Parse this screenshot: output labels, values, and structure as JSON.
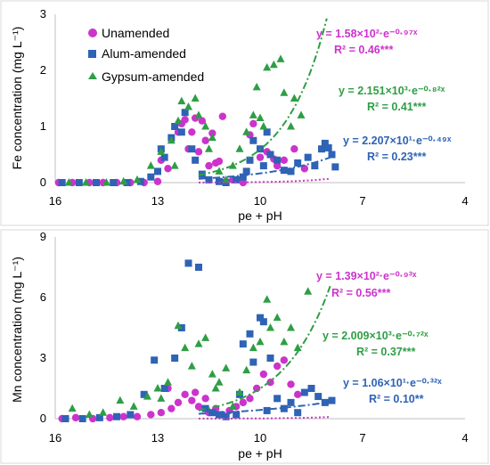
{
  "colors": {
    "Unamended": "#cc33cc",
    "Alum-amended": "#2e63b5",
    "Gypsum-amended": "#2e9e45"
  },
  "chart_data": [
    {
      "type": "scatter",
      "title": "",
      "xlabel": "pe + pH",
      "ylabel": "Fe concentration (mg L⁻¹)",
      "xlim": [
        16,
        4
      ],
      "ylim": [
        0,
        3
      ],
      "x_reversed": true,
      "x_ticks": [
        "16",
        "13",
        "10",
        "7",
        "4"
      ],
      "y_ticks": [
        "0",
        "1",
        "2",
        "3"
      ],
      "legend_position": "top-left",
      "series": [
        {
          "name": "Unamended",
          "marker": "circle",
          "points": [
            [
              15.9,
              0
            ],
            [
              15.5,
              0
            ],
            [
              15.0,
              0
            ],
            [
              14.6,
              0
            ],
            [
              14.2,
              0
            ],
            [
              13.8,
              0
            ],
            [
              13.4,
              0
            ],
            [
              13.0,
              0.02
            ],
            [
              12.7,
              0.25
            ],
            [
              12.4,
              0.9
            ],
            [
              12.3,
              1.05
            ],
            [
              12.2,
              1.12
            ],
            [
              12.0,
              0.9
            ],
            [
              11.9,
              1.15
            ],
            [
              11.8,
              0.55
            ],
            [
              11.7,
              1.1
            ],
            [
              11.6,
              0.75
            ],
            [
              11.5,
              0.3
            ],
            [
              11.4,
              0.88
            ],
            [
              11.3,
              0.35
            ],
            [
              11.2,
              0.38
            ],
            [
              11.0,
              0.02
            ],
            [
              10.8,
              0.05
            ],
            [
              10.5,
              0.0
            ],
            [
              10.3,
              0.85
            ],
            [
              10.2,
              1.05
            ],
            [
              10.0,
              0.45
            ],
            [
              9.8,
              0.55
            ],
            [
              9.6,
              0.42
            ],
            [
              9.5,
              0.3
            ],
            [
              9.3,
              0.4
            ],
            [
              9.0,
              0.6
            ],
            [
              8.7,
              0.25
            ],
            [
              12.9,
              0.4
            ],
            [
              12.1,
              0.6
            ],
            [
              11.1,
              1.18
            ]
          ]
        },
        {
          "name": "Alum-amended",
          "marker": "square",
          "points": [
            [
              15.8,
              0
            ],
            [
              15.3,
              0
            ],
            [
              14.8,
              0
            ],
            [
              14.3,
              0
            ],
            [
              13.9,
              0
            ],
            [
              13.5,
              0.02
            ],
            [
              13.2,
              0.1
            ],
            [
              13.0,
              0.2
            ],
            [
              12.8,
              0.45
            ],
            [
              12.6,
              0.8
            ],
            [
              12.5,
              1.0
            ],
            [
              12.3,
              0.9
            ],
            [
              12.2,
              1.25
            ],
            [
              12.0,
              0.6
            ],
            [
              11.9,
              0.4
            ],
            [
              11.7,
              0.15
            ],
            [
              11.5,
              0.05
            ],
            [
              11.2,
              0.02
            ],
            [
              11.0,
              0
            ],
            [
              10.7,
              0.05
            ],
            [
              10.5,
              0.1
            ],
            [
              10.3,
              0.4
            ],
            [
              10.2,
              0.75
            ],
            [
              10.0,
              0.6
            ],
            [
              9.9,
              0.3
            ],
            [
              9.7,
              0.5
            ],
            [
              9.5,
              0.4
            ],
            [
              9.3,
              0.22
            ],
            [
              9.1,
              0.2
            ],
            [
              8.9,
              0.35
            ],
            [
              8.6,
              0.45
            ],
            [
              8.4,
              0.3
            ],
            [
              8.2,
              0.6
            ],
            [
              8.1,
              0.7
            ],
            [
              8.0,
              0.62
            ],
            [
              7.9,
              0.5
            ],
            [
              7.8,
              0.28
            ],
            [
              9.8,
              0.9
            ],
            [
              12.9,
              0.6
            ],
            [
              10.4,
              0.2
            ]
          ]
        },
        {
          "name": "Gypsum-amended",
          "marker": "triangle",
          "points": [
            [
              15.6,
              0
            ],
            [
              15.1,
              0
            ],
            [
              14.5,
              0
            ],
            [
              14.0,
              0.02
            ],
            [
              13.6,
              0.05
            ],
            [
              13.2,
              0.3
            ],
            [
              12.9,
              0.55
            ],
            [
              12.6,
              0.75
            ],
            [
              12.4,
              1.1
            ],
            [
              12.3,
              1.45
            ],
            [
              12.1,
              1.35
            ],
            [
              11.9,
              1.5
            ],
            [
              11.8,
              1.2
            ],
            [
              11.6,
              1.0
            ],
            [
              11.4,
              0.8
            ],
            [
              11.2,
              0.2
            ],
            [
              11.0,
              0.05
            ],
            [
              10.8,
              0.3
            ],
            [
              10.6,
              0.6
            ],
            [
              10.4,
              0.9
            ],
            [
              10.2,
              1.2
            ],
            [
              10.1,
              1.7
            ],
            [
              10.0,
              1.15
            ],
            [
              9.9,
              1.0
            ],
            [
              9.8,
              2.05
            ],
            [
              9.6,
              2.1
            ],
            [
              9.4,
              2.2
            ],
            [
              9.3,
              1.6
            ],
            [
              9.1,
              1.0
            ],
            [
              9.0,
              1.5
            ],
            [
              8.8,
              1.2
            ],
            [
              12.5,
              0.3
            ],
            [
              11.5,
              0.6
            ]
          ]
        }
      ],
      "trendlines": [
        {
          "series": "Unamended",
          "a": 158,
          "b": -0.97,
          "equation": "y = 1.58×10²·e⁻⁰·⁹⁷ˣ",
          "r2_text": "R² = 0.46***",
          "style": "dotted"
        },
        {
          "series": "Gypsum-amended",
          "a": 2151,
          "b": -0.82,
          "equation": "y = 2.151×10³·e⁻⁰·⁸²ˣ",
          "r2_text": "R² = 0.41***",
          "style": "dashdot"
        },
        {
          "series": "Alum-amended",
          "a": 22.07,
          "b": -0.49,
          "equation": "y = 2.207×10¹·e⁻⁰·⁴⁹ˣ",
          "r2_text": "R² = 0.23***",
          "style": "dashdot"
        }
      ]
    },
    {
      "type": "scatter",
      "title": "",
      "xlabel": "pe + pH",
      "ylabel": "Mn concentration (mg L⁻¹)",
      "xlim": [
        16,
        4
      ],
      "ylim": [
        0,
        9
      ],
      "x_reversed": true,
      "x_ticks": [
        "16",
        "13",
        "10",
        "7",
        "4"
      ],
      "y_ticks": [
        "0",
        "3",
        "6",
        "9"
      ],
      "series": [
        {
          "name": "Unamended",
          "marker": "circle",
          "points": [
            [
              15.8,
              0
            ],
            [
              15.4,
              0.05
            ],
            [
              14.9,
              0
            ],
            [
              14.4,
              0.05
            ],
            [
              14.0,
              0.1
            ],
            [
              13.6,
              0.1
            ],
            [
              13.2,
              0.2
            ],
            [
              12.9,
              0.3
            ],
            [
              12.6,
              0.5
            ],
            [
              12.4,
              0.8
            ],
            [
              12.2,
              1.2
            ],
            [
              12.0,
              0.9
            ],
            [
              11.8,
              0.6
            ],
            [
              11.6,
              1.0
            ],
            [
              11.5,
              0.3
            ],
            [
              11.3,
              0.5
            ],
            [
              11.1,
              0.2
            ],
            [
              10.9,
              0.4
            ],
            [
              10.7,
              0.6
            ],
            [
              10.5,
              0.8
            ],
            [
              10.3,
              1.0
            ],
            [
              10.1,
              1.5
            ],
            [
              9.9,
              2.2
            ],
            [
              9.7,
              1.8
            ],
            [
              9.5,
              2.6
            ],
            [
              9.3,
              2.9
            ],
            [
              9.1,
              1.7
            ],
            [
              8.9,
              1.2
            ],
            [
              12.7,
              1.5
            ],
            [
              11.9,
              1.3
            ]
          ]
        },
        {
          "name": "Alum-amended",
          "marker": "square",
          "points": [
            [
              15.7,
              0
            ],
            [
              15.2,
              0
            ],
            [
              14.7,
              0.05
            ],
            [
              14.2,
              0.1
            ],
            [
              13.8,
              0.2
            ],
            [
              13.4,
              1.2
            ],
            [
              13.1,
              2.9
            ],
            [
              12.8,
              1.5
            ],
            [
              12.5,
              3.0
            ],
            [
              12.3,
              4.5
            ],
            [
              12.1,
              7.7
            ],
            [
              11.8,
              7.5
            ],
            [
              11.6,
              0.5
            ],
            [
              11.4,
              0.3
            ],
            [
              11.2,
              0.2
            ],
            [
              11.0,
              0.1
            ],
            [
              10.7,
              0.2
            ],
            [
              10.5,
              3.7
            ],
            [
              10.3,
              4.2
            ],
            [
              10.2,
              2.8
            ],
            [
              10.0,
              5.0
            ],
            [
              9.9,
              4.8
            ],
            [
              9.7,
              3.0
            ],
            [
              9.5,
              1.0
            ],
            [
              9.3,
              0.5
            ],
            [
              9.1,
              0.8
            ],
            [
              8.9,
              0.3
            ],
            [
              8.7,
              1.3
            ],
            [
              8.5,
              1.5
            ],
            [
              8.3,
              1.1
            ],
            [
              8.1,
              0.8
            ],
            [
              7.9,
              0.9
            ],
            [
              10.6,
              1.2
            ],
            [
              9.8,
              0.4
            ]
          ]
        },
        {
          "name": "Gypsum-amended",
          "marker": "triangle",
          "points": [
            [
              15.5,
              0.5
            ],
            [
              15.0,
              0.2
            ],
            [
              14.6,
              0.3
            ],
            [
              14.1,
              0.9
            ],
            [
              13.7,
              0.6
            ],
            [
              13.3,
              1.1
            ],
            [
              13.0,
              1.5
            ],
            [
              12.7,
              1.8
            ],
            [
              12.4,
              4.6
            ],
            [
              12.2,
              3.5
            ],
            [
              12.0,
              2.6
            ],
            [
              11.8,
              3.7
            ],
            [
              11.6,
              4.0
            ],
            [
              11.4,
              2.2
            ],
            [
              11.2,
              1.8
            ],
            [
              11.0,
              2.5
            ],
            [
              10.8,
              0.6
            ],
            [
              10.6,
              1.3
            ],
            [
              10.4,
              2.4
            ],
            [
              10.2,
              3.5
            ],
            [
              10.0,
              3.8
            ],
            [
              9.8,
              5.9
            ],
            [
              9.7,
              4.5
            ],
            [
              9.5,
              5.0
            ],
            [
              9.3,
              3.8
            ],
            [
              9.1,
              4.5
            ],
            [
              8.9,
              3.5
            ],
            [
              8.6,
              6.3
            ],
            [
              12.9,
              1.0
            ],
            [
              11.3,
              1.5
            ]
          ]
        }
      ],
      "trendlines": [
        {
          "series": "Unamended",
          "a": 139,
          "b": -0.93,
          "equation": "y = 1.39×10²·e⁻⁰·⁹³ˣ",
          "r2_text": "R² = 0.56***",
          "style": "dotted"
        },
        {
          "series": "Gypsum-amended",
          "a": 2009,
          "b": -0.72,
          "equation": "y = 2.009×10³·e⁻⁰·⁷²ˣ",
          "r2_text": "R² = 0.37***",
          "style": "dashdot"
        },
        {
          "series": "Alum-amended",
          "a": 10.6,
          "b": -0.32,
          "equation": "y = 1.06×10¹·e⁻⁰·³²ˣ",
          "r2_text": "R² = 0.10**",
          "style": "dashdot"
        }
      ]
    }
  ]
}
